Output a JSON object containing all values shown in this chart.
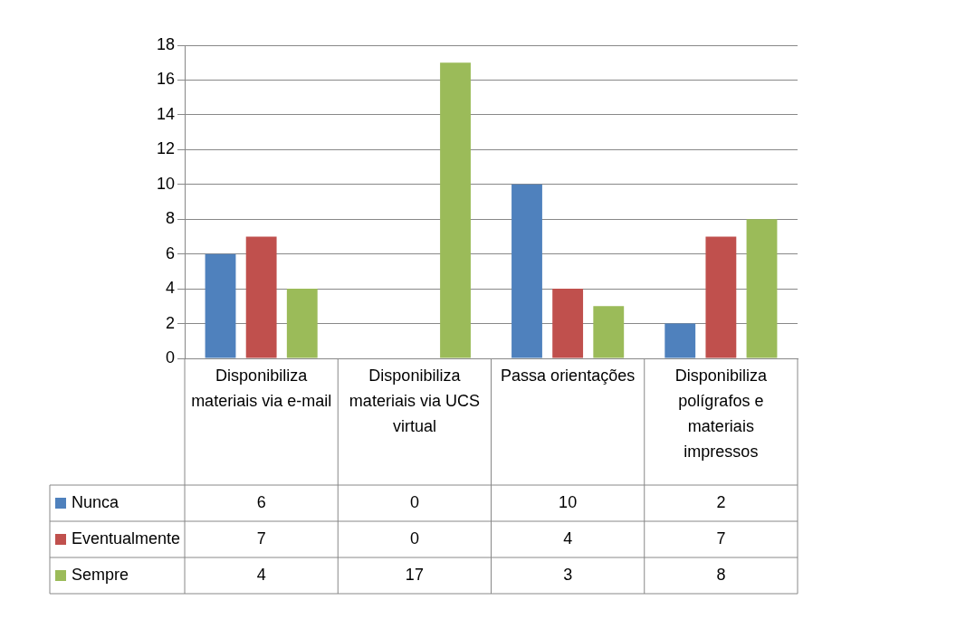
{
  "chart_data": {
    "type": "bar",
    "categories": [
      "Disponibiliza materiais via e-mail",
      "Disponibiliza materiais via UCS virtual",
      "Passa orientações",
      "Disponibiliza polígrafos e materiais impressos"
    ],
    "series": [
      {
        "name": "Nunca",
        "color": "#4f81bd",
        "values": [
          6,
          0,
          10,
          2
        ]
      },
      {
        "name": "Eventualmente",
        "color": "#c0504d",
        "values": [
          7,
          0,
          4,
          7
        ]
      },
      {
        "name": "Sempre",
        "color": "#9bbb59",
        "values": [
          4,
          17,
          3,
          8
        ]
      }
    ],
    "ylim": [
      0,
      18
    ],
    "yticks": [
      0,
      2,
      4,
      6,
      8,
      10,
      12,
      14,
      16,
      18
    ],
    "grid": "y",
    "legend": "left",
    "data_labels": true
  }
}
